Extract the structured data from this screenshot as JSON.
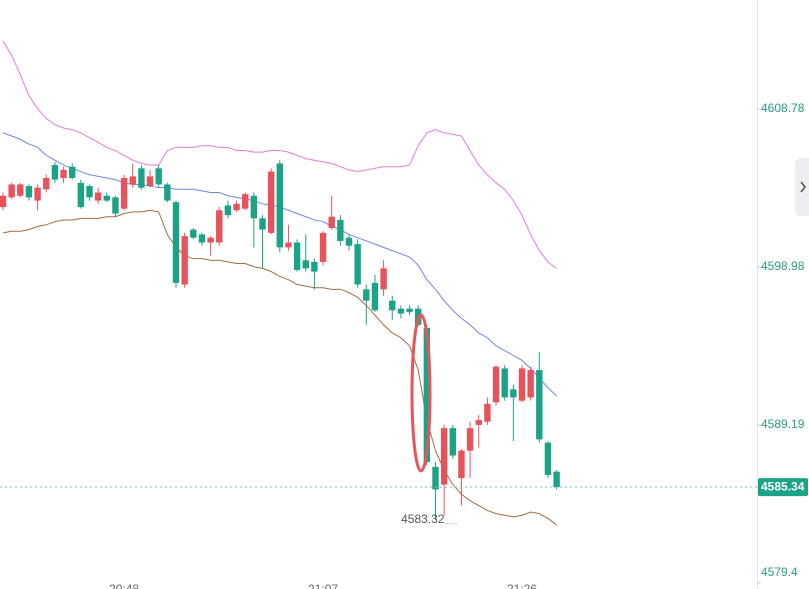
{
  "chart_data": {
    "type": "candlestick",
    "categories": [
      null,
      null,
      null,
      null,
      null,
      null,
      null,
      null,
      null,
      null,
      null,
      null,
      null,
      null,
      "20:48",
      null,
      null,
      null,
      null,
      null,
      null,
      null,
      null,
      null,
      null,
      null,
      null,
      null,
      null,
      null,
      null,
      null,
      null,
      null,
      null,
      null,
      null,
      "21:07",
      null,
      null,
      null,
      null,
      null,
      null,
      null,
      null,
      null,
      null,
      null,
      null,
      null,
      null,
      null,
      null,
      null,
      null,
      null,
      null,
      null,
      null,
      "21:26",
      null,
      null,
      null,
      null
    ],
    "open": [
      4602.7,
      4603.3,
      4603.4,
      4604.0,
      4603.1,
      4603.8,
      4605.3,
      4604.5,
      4605.2,
      4604.2,
      4604.0,
      4603.1,
      4603.4,
      4603.3,
      4602.6,
      4604.1,
      4605.1,
      4604.0,
      4605.1,
      4604.1,
      4603.0,
      4597.9,
      4601.3,
      4601.0,
      4600.5,
      4600.5,
      4602.8,
      4602.5,
      4602.6,
      4603.4,
      4602.0,
      4601.1,
      4605.4,
      4600.2,
      4600.5,
      4599.4,
      4599.3,
      4599.3,
      4601.4,
      4601.9,
      4600.8,
      4600.4,
      4597.6,
      4598.0,
      4597.6,
      4596.9,
      4596.4,
      4596.4,
      4596.4,
      4595.2,
      4586.6,
      4585.5,
      4589.0,
      4585.9,
      4587.6,
      4589.2,
      4589.4,
      4590.6,
      4592.7,
      4591.4,
      4590.7,
      4590.9,
      4592.6,
      4588.1,
      4586.3
    ],
    "high": [
      4603.6,
      4604.2,
      4604.2,
      4604.1,
      4604.1,
      4604.7,
      4605.5,
      4605.2,
      4605.4,
      4604.4,
      4604.1,
      4603.9,
      4603.6,
      4603.4,
      4604.7,
      4605.4,
      4605.3,
      4605.0,
      4605.3,
      4604.2,
      4603.1,
      4601.1,
      4601.4,
      4601.1,
      4600.9,
      4602.7,
      4603.1,
      4603.1,
      4603.6,
      4603.6,
      4602.2,
      4605.1,
      4605.6,
      4601.6,
      4600.7,
      4601.0,
      4599.5,
      4601.2,
      4603.4,
      4602.2,
      4601.0,
      4600.7,
      4597.9,
      4598.5,
      4599.4,
      4597.2,
      4596.6,
      4596.6,
      4596.6,
      4595.4,
      4586.9,
      4589.2,
      4589.2,
      4587.7,
      4589.4,
      4589.8,
      4590.9,
      4592.9,
      4592.9,
      4591.7,
      4592.9,
      4592.8,
      4593.7,
      4588.2,
      4586.4
    ],
    "low": [
      4602.5,
      4603.2,
      4603.3,
      4603.1,
      4602.5,
      4603.6,
      4604.2,
      4604.2,
      4604.4,
      4602.6,
      4603.1,
      4602.9,
      4603.0,
      4602.1,
      4602.5,
      4603.9,
      4603.8,
      4603.9,
      4603.9,
      4603.0,
      4597.7,
      4597.7,
      4600.7,
      4600.3,
      4599.7,
      4600.3,
      4602.0,
      4602.4,
      4602.5,
      4600.2,
      4598.9,
      4601.0,
      4599.9,
      4600.0,
      4598.7,
      4598.7,
      4597.6,
      4599.1,
      4601.3,
      4600.3,
      4600.0,
      4597.7,
      4595.4,
      4596.2,
      4597.2,
      4595.7,
      4595.8,
      4596.0,
      4595.3,
      4586.7,
      4583.32,
      4583.6,
      4587.1,
      4584.2,
      4585.9,
      4587.8,
      4589.2,
      4590.4,
      4590.7,
      4588.2,
      4590.6,
      4590.7,
      4588.1,
      4585.9,
      4585.2
    ],
    "close": [
      4603.4,
      4604.1,
      4604.1,
      4603.3,
      4603.9,
      4604.5,
      4604.4,
      4605.0,
      4604.5,
      4602.7,
      4603.3,
      4603.6,
      4603.1,
      4602.3,
      4604.5,
      4604.6,
      4603.9,
      4604.6,
      4604.1,
      4603.1,
      4598.0,
      4600.9,
      4600.8,
      4600.5,
      4600.8,
      4602.5,
      4602.2,
      4602.9,
      4603.5,
      4602.0,
      4601.3,
      4604.9,
      4600.2,
      4600.5,
      4598.8,
      4598.9,
      4598.7,
      4601.1,
      4602.1,
      4600.6,
      4600.3,
      4597.9,
      4596.9,
      4596.3,
      4598.9,
      4596.3,
      4596.1,
      4596.2,
      4595.4,
      4586.9,
      4585.2,
      4589.0,
      4587.3,
      4587.6,
      4589.0,
      4589.5,
      4590.5,
      4592.8,
      4590.9,
      4590.9,
      4592.7,
      4592.6,
      4588.3,
      4586.1,
      4585.34
    ],
    "up_color": "#e8535b",
    "down_color": "#1aa387",
    "series": [
      {
        "color": "#e07ddc",
        "values": [
          4613.0,
          4612.1,
          4610.9,
          4609.6,
          4608.8,
          4608.2,
          4607.8,
          4607.6,
          4607.5,
          4607.3,
          4607.0,
          4606.7,
          4606.4,
          4606.2,
          4605.9,
          4605.6,
          4605.4,
          4605.3,
          4605.3,
          4606.2,
          4606.4,
          4606.4,
          4606.4,
          4606.5,
          4606.5,
          4606.4,
          4606.4,
          4606.2,
          4606.2,
          4606.1,
          4606.1,
          4606.2,
          4606.2,
          4606.1,
          4605.9,
          4605.7,
          4605.6,
          4605.5,
          4605.4,
          4605.2,
          4605.0,
          4604.9,
          4605.0,
          4605.1,
          4605.2,
          4605.2,
          4605.2,
          4605.3,
          4606.5,
          4607.3,
          4607.5,
          4607.3,
          4607.2,
          4607.1,
          4606.2,
          4605.3,
          4604.7,
          4604.2,
          4603.8,
          4603.1,
          4602.2,
          4601.0,
          4600.0,
          4599.3,
          4598.9
        ]
      },
      {
        "color": "#6f86e6",
        "values": [
          4607.3,
          4607.1,
          4606.9,
          4606.6,
          4606.4,
          4605.9,
          4605.6,
          4605.3,
          4605.1,
          4604.9,
          4604.7,
          4604.6,
          4604.5,
          4604.4,
          4604.2,
          4604.1,
          4604.1,
          4604.0,
          4603.9,
          4603.9,
          4603.8,
          4603.8,
          4603.8,
          4603.7,
          4603.6,
          4603.6,
          4603.4,
          4603.3,
          4603.2,
          4603.1,
          4602.9,
          4602.8,
          4602.7,
          4602.5,
          4602.3,
          4602.1,
          4601.9,
          4601.8,
          4601.5,
          4601.3,
          4601.0,
          4600.8,
          4600.6,
          4600.4,
          4600.2,
          4600.0,
          4599.8,
          4599.6,
          4599.1,
          4598.2,
          4597.6,
          4596.9,
          4596.3,
          4595.8,
          4595.4,
          4594.9,
          4594.6,
          4594.1,
          4593.8,
          4593.5,
          4593.2,
          4592.7,
          4592.1,
          4591.5,
          4591.0
        ]
      },
      {
        "color": "#a36c40",
        "values": [
          4601.1,
          4601.2,
          4601.2,
          4601.3,
          4601.5,
          4601.6,
          4601.8,
          4601.9,
          4601.9,
          4602.0,
          4602.0,
          4602.0,
          4602.1,
          4602.1,
          4602.3,
          4602.4,
          4602.4,
          4602.5,
          4602.4,
          4601.0,
          4600.2,
          4599.7,
          4599.5,
          4599.5,
          4599.4,
          4599.4,
          4599.3,
          4599.2,
          4599.2,
          4599.0,
          4598.9,
          4598.7,
          4598.4,
          4598.2,
          4597.9,
          4597.8,
          4597.7,
          4597.7,
          4597.6,
          4597.6,
          4597.4,
          4597.1,
          4596.6,
          4596.0,
          4595.4,
          4594.9,
          4594.6,
          4594.1,
          4592.6,
          4589.5,
          4587.6,
          4586.4,
          4585.5,
          4584.9,
          4584.5,
          4584.2,
          4583.9,
          4583.7,
          4583.6,
          4583.5,
          4583.6,
          4583.8,
          4583.7,
          4583.4,
          4583.0
        ]
      }
    ],
    "ylim": [
      4579.03,
      4615.53
    ],
    "yticks": [
      4608.78,
      4598.98,
      4589.19,
      4579.4
    ],
    "last_price_color": "#1aa387"
  }
}
